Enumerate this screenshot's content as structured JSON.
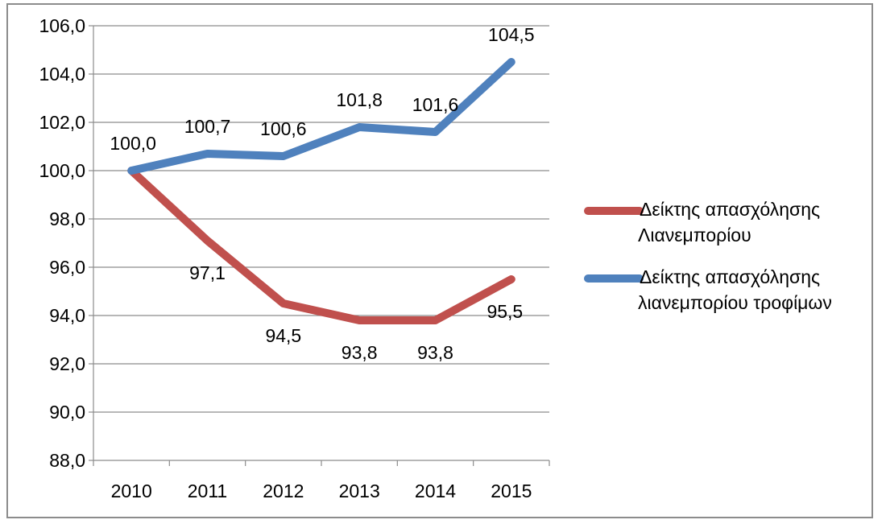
{
  "chart_data": {
    "type": "line",
    "categories": [
      "2010",
      "2011",
      "2012",
      "2013",
      "2014",
      "2015"
    ],
    "series": [
      {
        "name": "Δείκτης απασχόλησης Λιανεμπορίου",
        "legend_lines": [
          "Δείκτης απασχόλησης",
          "Λιανεμπορίου"
        ],
        "color": "#c0504d",
        "values": [
          100.0,
          97.1,
          94.5,
          93.8,
          93.8,
          95.5
        ],
        "labels": [
          "100,0",
          "97,1",
          "94,5",
          "93,8",
          "93,8",
          "95,5"
        ]
      },
      {
        "name": "Δείκτης απασχόλησης λιανεμπορίου τροφίμων",
        "legend_lines": [
          "Δείκτης απασχόλησης",
          "λιανεμπορίου  τροφίμων"
        ],
        "color": "#4f81bd",
        "values": [
          100.0,
          100.7,
          100.6,
          101.8,
          101.6,
          104.5
        ],
        "labels": [
          "100,0",
          "100,7",
          "100,6",
          "101,8",
          "101,6",
          "104,5"
        ]
      }
    ],
    "ylim": [
      88.0,
      106.0
    ],
    "yticks": [
      88.0,
      90.0,
      92.0,
      94.0,
      96.0,
      98.0,
      100.0,
      102.0,
      104.0,
      106.0
    ],
    "ytick_labels": [
      "88,0",
      "90,0",
      "92,0",
      "94,0",
      "96,0",
      "98,0",
      "100,0",
      "102,0",
      "104,0",
      "106,0"
    ],
    "grid": true,
    "legend_position": "right",
    "title": "",
    "xlabel": "",
    "ylabel": ""
  }
}
